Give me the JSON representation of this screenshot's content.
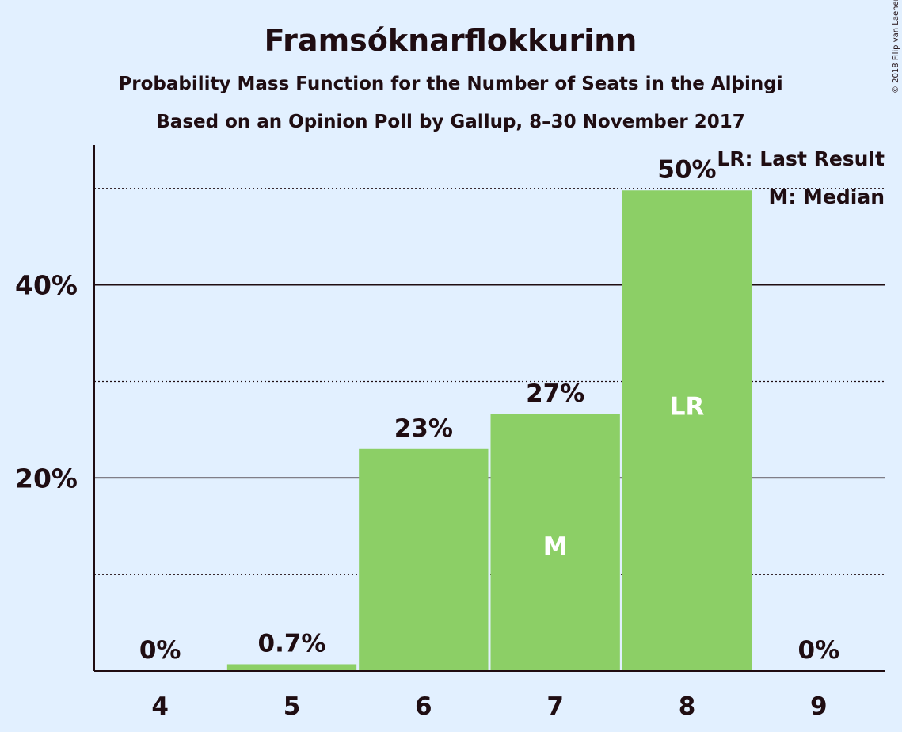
{
  "title": "Framsóknarflokkurinn",
  "subtitle_1": "Probability Mass Function for the Number of Seats in the Alþingi",
  "subtitle_2": "Based on an Opinion Poll by Gallup, 8–30 November 2017",
  "copyright": "© 2018 Filip van Laenen",
  "legend": {
    "last_result": "LR: Last Result",
    "median": "M: Median"
  },
  "colors": {
    "background": "#e2f0ff",
    "bar": "#8ccf66",
    "text": "#1f0d12",
    "marker_text": "#ffffff"
  },
  "chart_data": {
    "type": "bar",
    "categories": [
      "4",
      "5",
      "6",
      "7",
      "8",
      "9"
    ],
    "values": [
      0,
      0.7,
      23,
      26.6,
      49.8,
      0
    ],
    "value_labels": [
      "0%",
      "0.7%",
      "23%",
      "27%",
      "50%",
      "0%"
    ],
    "markers": [
      "",
      "",
      "",
      "M",
      "LR",
      ""
    ],
    "yticks": [
      {
        "value": 20,
        "label": "20%"
      },
      {
        "value": 40,
        "label": "40%"
      }
    ],
    "minor_gridlines": [
      10,
      30,
      50
    ],
    "ylim": [
      0,
      54.5
    ],
    "xlabel": "",
    "ylabel": ""
  }
}
